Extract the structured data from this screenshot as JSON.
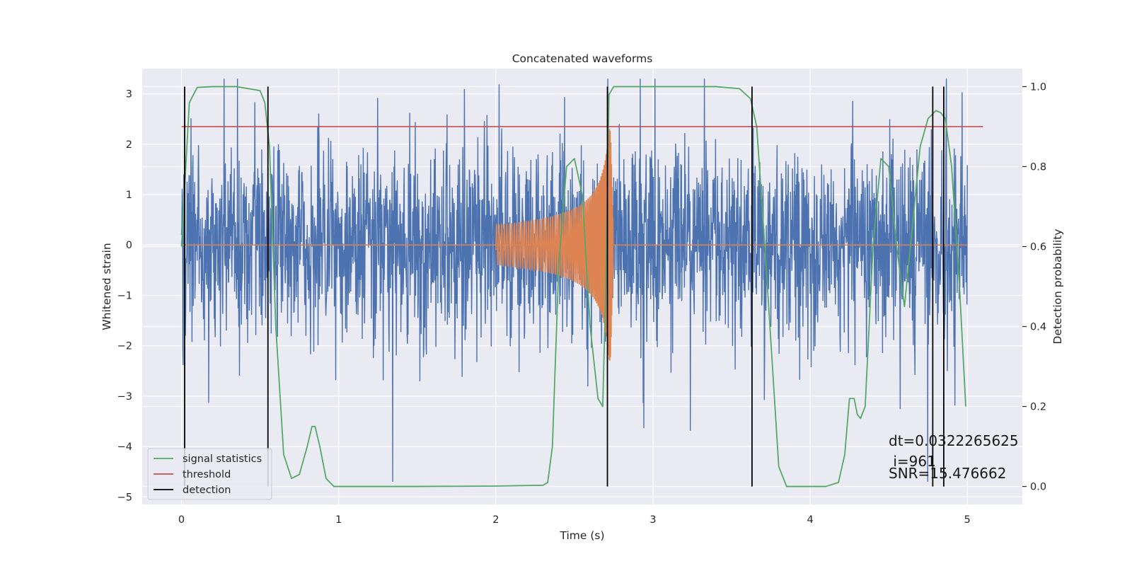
{
  "chart_data": {
    "type": "line",
    "title": "Concatenated waveforms",
    "xlabel": "Time (s)",
    "ylabel": "Whitened strain",
    "y2label": "Detection probability",
    "xlim": [
      -0.25,
      5.35
    ],
    "ylim": [
      -5.15,
      3.5
    ],
    "y2lim": [
      -0.045,
      1.045
    ],
    "xticks": [
      0,
      1,
      2,
      3,
      4,
      5
    ],
    "xtick_labels": [
      "0",
      "1",
      "2",
      "3",
      "4",
      "5"
    ],
    "yticks": [
      -5,
      -4,
      -3,
      -2,
      -1,
      0,
      1,
      2,
      3
    ],
    "ytick_labels": [
      "−5",
      "−4",
      "−3",
      "−2",
      "−1",
      "0",
      "1",
      "2",
      "3"
    ],
    "y2ticks": [
      0.0,
      0.2,
      0.4,
      0.6,
      0.8,
      1.0
    ],
    "y2tick_labels": [
      "0.0",
      "0.2",
      "0.4",
      "0.6",
      "0.8",
      "1.0"
    ],
    "grid": true,
    "legend_position": "lower-left",
    "legend": [
      {
        "label": "signal statistics",
        "color": "#55a868"
      },
      {
        "label": "threshold",
        "color": "#c44e52"
      },
      {
        "label": "detection",
        "color": "#000000"
      }
    ],
    "series": [
      {
        "role": "strain",
        "color": "#4c72b0",
        "x_range": [
          0,
          5
        ],
        "approx_amplitude": 3.3
      },
      {
        "role": "chirp",
        "color": "#dd8452",
        "x_range": [
          2.0,
          2.75
        ],
        "start_amplitude": 0.4,
        "peak_amplitude": 2.3,
        "peak_time": 2.73
      },
      {
        "name": "signal statistics",
        "color": "#55a868",
        "axis": "right",
        "x": [
          0.0,
          0.02,
          0.05,
          0.1,
          0.2,
          0.35,
          0.5,
          0.53,
          0.56,
          0.6,
          0.65,
          0.7,
          0.75,
          0.8,
          0.83,
          0.85,
          0.88,
          0.92,
          0.97,
          1.0,
          1.5,
          2.0,
          2.3,
          2.33,
          2.36,
          2.4,
          2.45,
          2.5,
          2.55,
          2.6,
          2.65,
          2.68,
          2.7,
          2.72,
          2.75,
          2.8,
          3.0,
          3.4,
          3.55,
          3.62,
          3.66,
          3.72,
          3.8,
          3.85,
          3.95,
          4.1,
          4.18,
          4.22,
          4.25,
          4.28,
          4.3,
          4.32,
          4.35,
          4.4,
          4.45,
          4.5,
          4.55,
          4.6,
          4.65,
          4.7,
          4.75,
          4.8,
          4.83,
          4.86,
          4.9,
          4.95,
          4.99
        ],
        "values": [
          0.6,
          0.75,
          0.96,
          0.998,
          1.0,
          1.0,
          0.99,
          0.96,
          0.85,
          0.4,
          0.08,
          0.02,
          0.03,
          0.1,
          0.15,
          0.15,
          0.1,
          0.02,
          0.0,
          0.0,
          0.0,
          0.001,
          0.003,
          0.01,
          0.1,
          0.55,
          0.8,
          0.82,
          0.73,
          0.4,
          0.22,
          0.2,
          0.5,
          0.98,
          1.0,
          1.0,
          1.0,
          1.0,
          0.995,
          0.97,
          0.9,
          0.55,
          0.05,
          0.0,
          0.0,
          0.0,
          0.01,
          0.08,
          0.22,
          0.22,
          0.18,
          0.17,
          0.2,
          0.6,
          0.82,
          0.8,
          0.6,
          0.45,
          0.65,
          0.85,
          0.92,
          0.94,
          0.935,
          0.92,
          0.8,
          0.5,
          0.2
        ]
      },
      {
        "name": "threshold",
        "color": "#c44e52",
        "axis": "right",
        "x": [
          0.0,
          5.1
        ],
        "values": [
          0.9,
          0.9
        ]
      }
    ],
    "detections": [
      0.02,
      0.55,
      2.71,
      3.63,
      4.78,
      4.85
    ],
    "detection_range_y2": [
      0.0,
      1.0
    ],
    "annotations": [
      "dt=0.0322265625",
      " i=961",
      "SNR=15.476662"
    ]
  }
}
